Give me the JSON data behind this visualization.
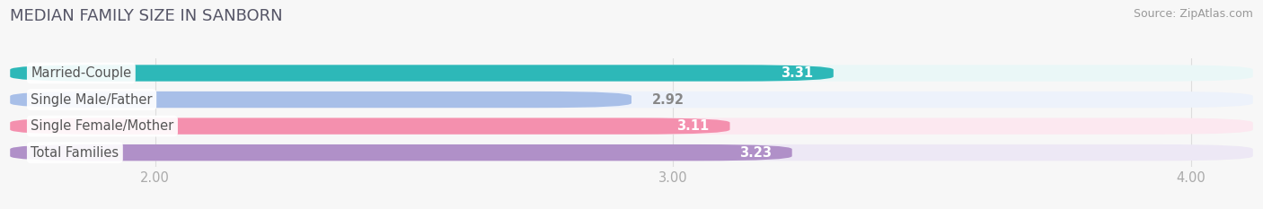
{
  "title": "MEDIAN FAMILY SIZE IN SANBORN",
  "source": "Source: ZipAtlas.com",
  "categories": [
    "Married-Couple",
    "Single Male/Father",
    "Single Female/Mother",
    "Total Families"
  ],
  "values": [
    3.31,
    2.92,
    3.11,
    3.23
  ],
  "bar_colors": [
    "#2db8b8",
    "#a8bfe8",
    "#f490ae",
    "#b090c8"
  ],
  "bar_bg_colors": [
    "#eaf7f7",
    "#edf2fb",
    "#fce8f0",
    "#ede8f5"
  ],
  "value_label_colors": [
    "white",
    "#888888",
    "white",
    "white"
  ],
  "xlim_start": 1.72,
  "xlim_end": 4.12,
  "xticks": [
    2.0,
    3.0,
    4.0
  ],
  "xtick_labels": [
    "2.00",
    "3.00",
    "4.00"
  ],
  "bar_height": 0.62,
  "bar_gap": 0.38,
  "label_fontsize": 10.5,
  "value_fontsize": 10.5,
  "title_fontsize": 13,
  "source_fontsize": 9,
  "figsize": [
    14.06,
    2.33
  ],
  "dpi": 100,
  "bg_color": "#f7f7f7",
  "title_color": "#555566",
  "source_color": "#999999",
  "grid_color": "#dddddd",
  "tick_color": "#aaaaaa"
}
